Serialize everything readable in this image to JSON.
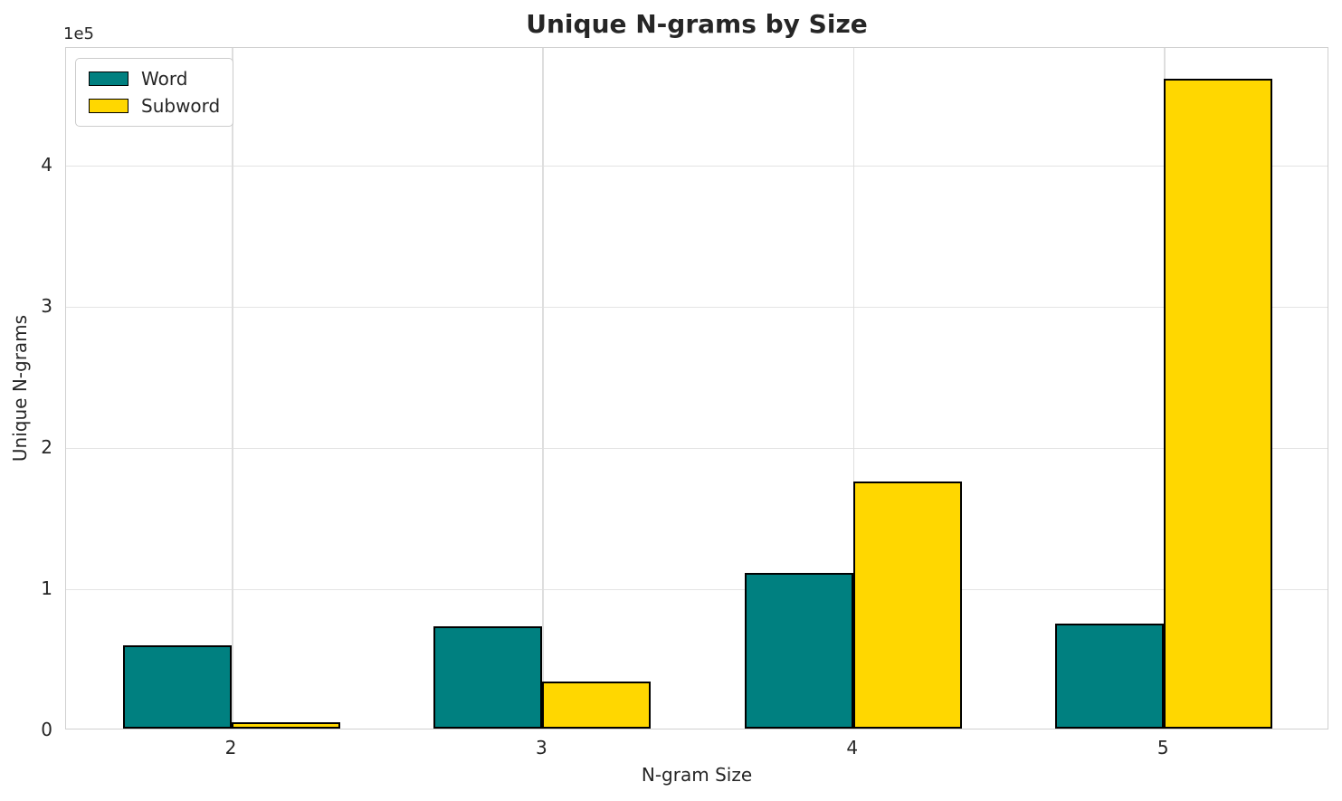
{
  "chart_data": {
    "type": "bar",
    "title": "Unique N-grams by Size",
    "xlabel": "N-gram Size",
    "ylabel": "Unique N-grams",
    "y_offset_text": "1e5",
    "categories": [
      "2",
      "3",
      "4",
      "5"
    ],
    "series": [
      {
        "name": "Word",
        "color": "#008080",
        "values": [
          59000,
          72500,
          110000,
          74000
        ]
      },
      {
        "name": "Subword",
        "color": "#FFD700",
        "values": [
          4500,
          33500,
          175000,
          460000
        ]
      }
    ],
    "bar_edge_color": "#000000",
    "ylim": [
      0,
      483000
    ],
    "yticks": [
      {
        "value": 0,
        "label": "0"
      },
      {
        "value": 100000,
        "label": "1"
      },
      {
        "value": 200000,
        "label": "2"
      },
      {
        "value": 300000,
        "label": "3"
      },
      {
        "value": 400000,
        "label": "4"
      }
    ],
    "grid": true,
    "legend_position": "upper left"
  },
  "colors": {
    "grid": "#e4e4e4",
    "spine": "#d0d0d0",
    "text": "#262626"
  }
}
